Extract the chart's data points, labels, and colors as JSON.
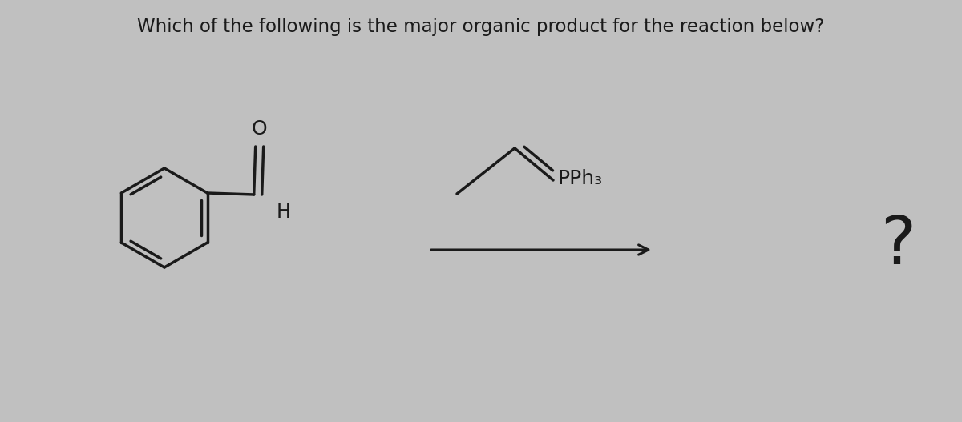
{
  "title": "Which of the following is the major organic product for the reaction below?",
  "title_fontsize": 16.5,
  "title_color": "#1a1a1a",
  "bg_color": "#c0c0c0",
  "text_color": "#1a1a1a",
  "lw": 2.5,
  "question_mark": "?",
  "reagent_label": "PPh₃",
  "H_label": "H",
  "O_label": "O"
}
